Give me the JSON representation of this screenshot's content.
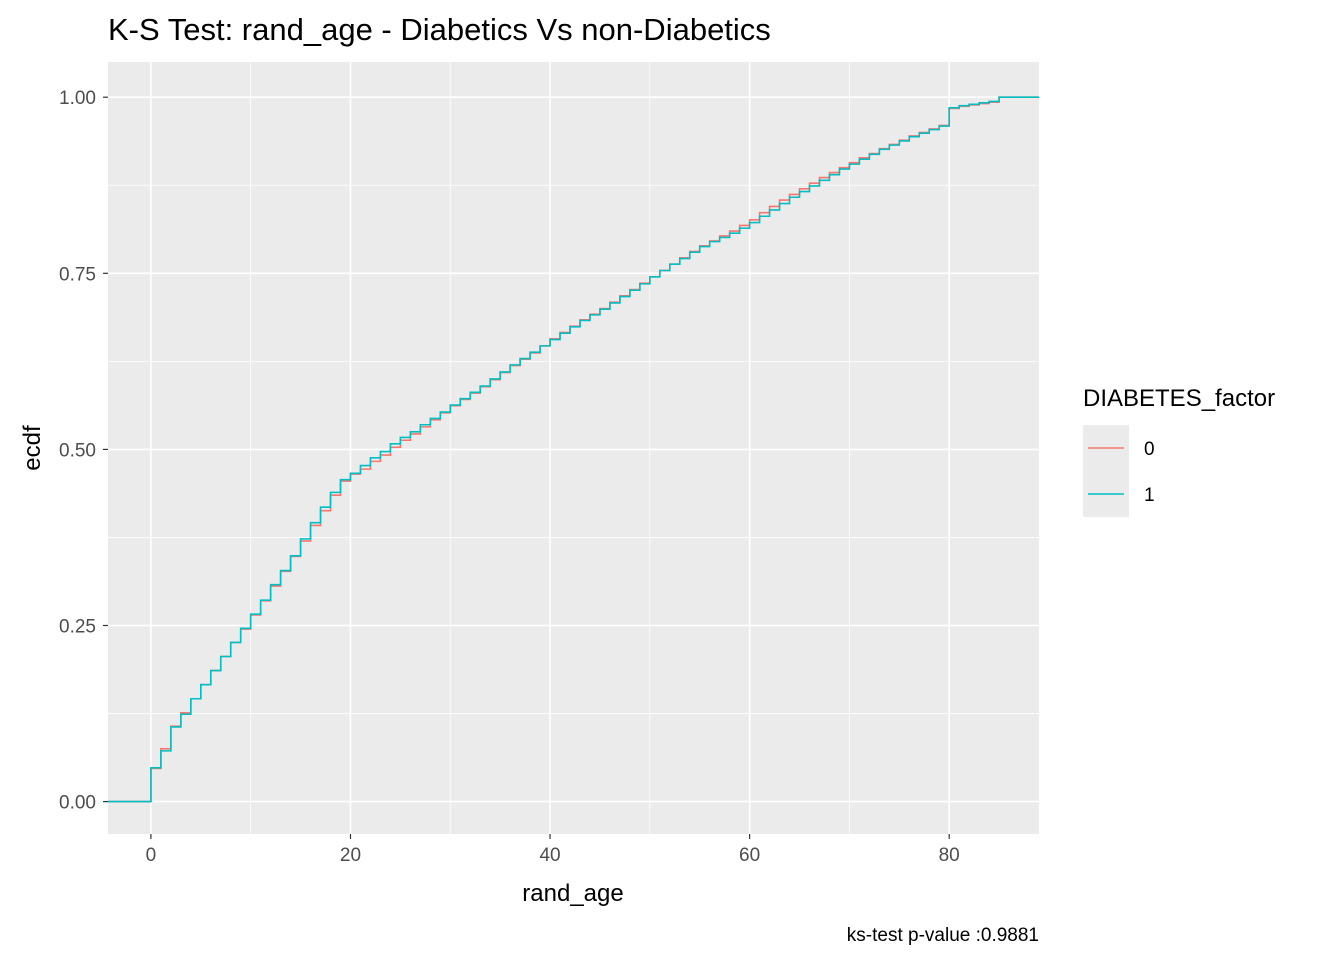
{
  "chart_data": {
    "type": "line",
    "step": true,
    "title": "K-S Test: rand_age - Diabetics Vs non-Diabetics",
    "xlabel": "rand_age",
    "ylabel": "ecdf",
    "caption": "ks-test p-value :0.9881",
    "xlim": [
      -4.3,
      89
    ],
    "ylim": [
      -0.046,
      1.05
    ],
    "x_ticks": [
      0,
      20,
      40,
      60,
      80
    ],
    "x_tick_labels": [
      "0",
      "20",
      "40",
      "60",
      "80"
    ],
    "y_ticks": [
      0,
      0.25,
      0.5,
      0.75,
      1.0
    ],
    "y_tick_labels": [
      "0.00",
      "0.25",
      "0.50",
      "0.75",
      "1.00"
    ],
    "grid": true,
    "legend": {
      "title": "DIABETES_factor",
      "position": "right",
      "entries": [
        "0",
        "1"
      ]
    },
    "series": [
      {
        "name": "0",
        "color": "#F8766D",
        "x": [
          0,
          1,
          2,
          3,
          4,
          5,
          6,
          7,
          8,
          9,
          10,
          11,
          12,
          13,
          14,
          15,
          16,
          17,
          18,
          19,
          20,
          21,
          22,
          23,
          24,
          25,
          26,
          27,
          28,
          29,
          30,
          31,
          32,
          33,
          34,
          35,
          36,
          37,
          38,
          39,
          40,
          41,
          42,
          43,
          44,
          45,
          46,
          47,
          48,
          49,
          50,
          51,
          52,
          53,
          54,
          55,
          56,
          57,
          58,
          59,
          60,
          61,
          62,
          63,
          64,
          65,
          66,
          67,
          68,
          69,
          70,
          71,
          72,
          73,
          74,
          75,
          76,
          77,
          78,
          79,
          80,
          81,
          82,
          83,
          84,
          85
        ],
        "y": [
          0.047,
          0.075,
          0.107,
          0.126,
          0.146,
          0.166,
          0.186,
          0.206,
          0.226,
          0.245,
          0.265,
          0.285,
          0.306,
          0.327,
          0.348,
          0.37,
          0.392,
          0.413,
          0.435,
          0.455,
          0.465,
          0.472,
          0.483,
          0.492,
          0.503,
          0.513,
          0.522,
          0.532,
          0.542,
          0.552,
          0.562,
          0.571,
          0.58,
          0.589,
          0.599,
          0.609,
          0.619,
          0.628,
          0.637,
          0.647,
          0.657,
          0.666,
          0.675,
          0.684,
          0.692,
          0.7,
          0.709,
          0.718,
          0.727,
          0.736,
          0.745,
          0.754,
          0.763,
          0.772,
          0.781,
          0.789,
          0.796,
          0.803,
          0.81,
          0.818,
          0.826,
          0.836,
          0.845,
          0.854,
          0.862,
          0.87,
          0.878,
          0.886,
          0.893,
          0.9,
          0.907,
          0.914,
          0.92,
          0.927,
          0.933,
          0.939,
          0.945,
          0.95,
          0.955,
          0.96,
          0.984,
          0.987,
          0.989,
          0.991,
          0.993,
          1.0
        ]
      },
      {
        "name": "1",
        "color": "#00BFC4",
        "x": [
          0,
          1,
          2,
          3,
          4,
          5,
          6,
          7,
          8,
          9,
          10,
          11,
          12,
          13,
          14,
          15,
          16,
          17,
          18,
          19,
          20,
          21,
          22,
          23,
          24,
          25,
          26,
          27,
          28,
          29,
          30,
          31,
          32,
          33,
          34,
          35,
          36,
          37,
          38,
          39,
          40,
          41,
          42,
          43,
          44,
          45,
          46,
          47,
          48,
          49,
          50,
          51,
          52,
          53,
          54,
          55,
          56,
          57,
          58,
          59,
          60,
          61,
          62,
          63,
          64,
          65,
          66,
          67,
          68,
          69,
          70,
          71,
          72,
          73,
          74,
          75,
          76,
          77,
          78,
          79,
          80,
          81,
          82,
          83,
          84,
          85
        ],
        "y": [
          0.048,
          0.072,
          0.106,
          0.124,
          0.146,
          0.166,
          0.186,
          0.206,
          0.226,
          0.246,
          0.266,
          0.286,
          0.308,
          0.328,
          0.349,
          0.373,
          0.396,
          0.418,
          0.439,
          0.457,
          0.466,
          0.477,
          0.488,
          0.497,
          0.508,
          0.517,
          0.525,
          0.535,
          0.544,
          0.553,
          0.563,
          0.572,
          0.581,
          0.59,
          0.6,
          0.61,
          0.62,
          0.629,
          0.638,
          0.647,
          0.656,
          0.665,
          0.674,
          0.683,
          0.691,
          0.699,
          0.708,
          0.717,
          0.726,
          0.735,
          0.745,
          0.754,
          0.763,
          0.771,
          0.78,
          0.788,
          0.795,
          0.801,
          0.807,
          0.814,
          0.822,
          0.831,
          0.84,
          0.849,
          0.858,
          0.866,
          0.874,
          0.882,
          0.89,
          0.898,
          0.905,
          0.912,
          0.919,
          0.926,
          0.932,
          0.938,
          0.944,
          0.949,
          0.954,
          0.959,
          0.985,
          0.988,
          0.99,
          0.992,
          0.994,
          1.0
        ]
      }
    ]
  }
}
